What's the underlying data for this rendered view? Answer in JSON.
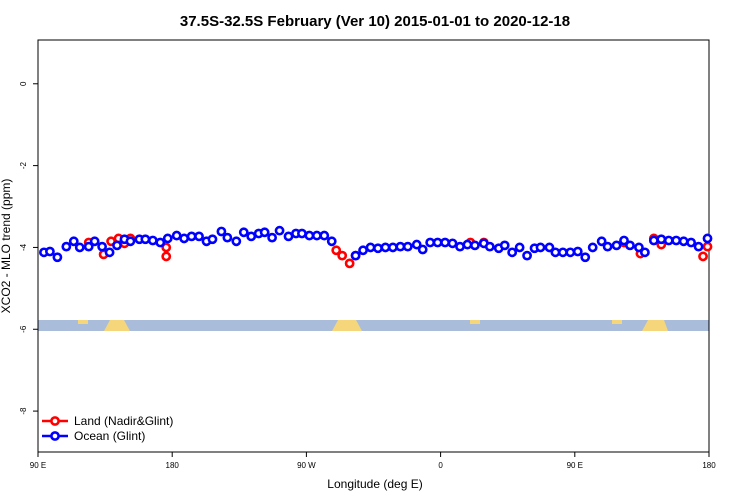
{
  "chart_data": {
    "type": "scatter",
    "title": "37.5S-32.5S February (Ver 10)   2015-01-01 to 2020-12-18",
    "x_label": "Longitude (deg E)",
    "y_label": "XCO2 - MLO trend (ppm)",
    "xlim": [
      90,
      540
    ],
    "ylim": [
      -9,
      1.07
    ],
    "xticks": [
      {
        "value": 90,
        "label": "90 E"
      },
      180,
      {
        "value": 270,
        "label": "90 W"
      },
      {
        "value": 360,
        "label": "0"
      },
      {
        "value": 450,
        "label": "90 E"
      },
      {
        "value": 540,
        "label": "180"
      }
    ],
    "yticks": [
      0,
      -2,
      -4,
      -6,
      -8
    ],
    "legend": "bottom-left",
    "series": [
      {
        "name": "Land (Nadir&Glint)",
        "color": "#ff0000",
        "x": [
          124,
          134,
          139,
          144,
          148,
          152,
          176,
          176,
          290,
          294,
          299,
          303,
          380,
          389,
          483,
          494,
          503,
          508,
          536,
          539
        ],
        "values": [
          -3.88,
          -4.17,
          -3.85,
          -3.78,
          -3.9,
          -3.78,
          -4.22,
          -4.0,
          -4.07,
          -4.2,
          -4.39,
          -4.2,
          -3.88,
          -3.88,
          -3.88,
          -4.15,
          -3.78,
          -3.93,
          -4.22,
          -3.98
        ]
      },
      {
        "name": "Ocean (Glint)",
        "color": "#0000ff",
        "x": [
          94,
          98,
          103,
          109,
          114,
          118,
          124,
          128,
          133,
          138,
          143,
          148,
          152,
          158,
          162,
          167,
          172,
          177,
          183,
          188,
          193,
          198,
          203,
          207,
          213,
          217,
          223,
          228,
          233,
          238,
          242,
          247,
          252,
          258,
          263,
          267,
          272,
          277,
          282,
          287,
          303,
          308,
          313,
          318,
          323,
          328,
          333,
          338,
          344,
          348,
          353,
          358,
          363,
          368,
          373,
          378,
          383,
          389,
          393,
          399,
          403,
          408,
          413,
          418,
          423,
          427,
          433,
          437,
          442,
          447,
          452,
          457,
          462,
          468,
          472,
          478,
          483,
          487,
          493,
          497,
          503,
          508,
          513,
          518,
          523,
          528,
          533,
          539
        ],
        "values": [
          -4.12,
          -4.1,
          -4.24,
          -3.98,
          -3.85,
          -4.0,
          -3.98,
          -3.85,
          -3.98,
          -4.12,
          -3.95,
          -3.8,
          -3.85,
          -3.8,
          -3.8,
          -3.83,
          -3.88,
          -3.78,
          -3.71,
          -3.78,
          -3.73,
          -3.73,
          -3.85,
          -3.8,
          -3.61,
          -3.76,
          -3.85,
          -3.63,
          -3.73,
          -3.66,
          -3.63,
          -3.76,
          -3.59,
          -3.73,
          -3.66,
          -3.66,
          -3.71,
          -3.71,
          -3.71,
          -3.85,
          -4.2,
          -4.07,
          -4.0,
          -4.02,
          -4.0,
          -4.0,
          -3.98,
          -3.98,
          -3.93,
          -4.05,
          -3.88,
          -3.88,
          -3.88,
          -3.9,
          -3.98,
          -3.93,
          -3.95,
          -3.9,
          -3.98,
          -4.02,
          -3.95,
          -4.12,
          -4.0,
          -4.2,
          -4.02,
          -4.0,
          -4.0,
          -4.12,
          -4.12,
          -4.12,
          -4.1,
          -4.24,
          -4.0,
          -3.85,
          -3.98,
          -3.95,
          -3.83,
          -3.95,
          -4.0,
          -4.12,
          -3.83,
          -3.8,
          -3.83,
          -3.83,
          -3.85,
          -3.88,
          -3.98,
          -3.78
        ]
      }
    ]
  }
}
